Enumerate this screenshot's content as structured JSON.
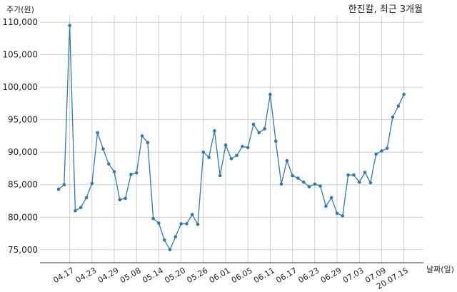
{
  "chart_data": {
    "type": "line",
    "title": "한진칼, 최근 3개월",
    "ylabel": "주가(원)",
    "xlabel": "날짜(일)",
    "ylim": [
      73000,
      111000
    ],
    "yticks": [
      75000,
      80000,
      85000,
      90000,
      95000,
      100000,
      105000,
      110000
    ],
    "ytick_labels": [
      "75,000",
      "80,000",
      "85,000",
      "90,000",
      "95,000",
      "100,000",
      "105,000",
      "110,000"
    ],
    "xtick_labels": [
      "04.17",
      "04.23",
      "04.29",
      "05.08",
      "05.14",
      "05.20",
      "05.26",
      "06.01",
      "06.05",
      "06.11",
      "06.17",
      "06.23",
      "06.29",
      "07.03",
      "07.09",
      "20.07.15"
    ],
    "xtick_indices": [
      2,
      6,
      10,
      14,
      18,
      22,
      26,
      30,
      34,
      38,
      42,
      46,
      50,
      54,
      58,
      62
    ],
    "grid": true,
    "color": "#2f7bb0",
    "series": [
      {
        "values": [
          84300,
          85000,
          109500,
          81000,
          81500,
          83000,
          85200,
          93000,
          90500,
          88200,
          87000,
          82700,
          82900,
          86600,
          86800,
          92500,
          91500,
          79800,
          79100,
          76500,
          75000,
          77000,
          79000,
          79000,
          80400,
          78900,
          90000,
          89200,
          93300,
          86400,
          91100,
          89000,
          89500,
          90900,
          90700,
          94300,
          93000,
          93600,
          98900,
          91700,
          85100,
          88700,
          86400,
          86000,
          85400,
          84700,
          85100,
          84800,
          81700,
          83000,
          80600,
          80200,
          86500,
          86500,
          85400,
          86900,
          85300,
          89700,
          90200,
          90600,
          95400,
          97100,
          98900
        ]
      }
    ]
  }
}
